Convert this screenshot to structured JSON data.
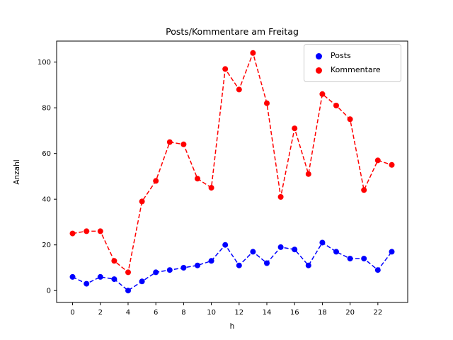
{
  "chart_data": {
    "type": "line",
    "title": "Posts/Kommentare am Freitag",
    "xlabel": "h",
    "ylabel": "Anzahl",
    "x": [
      0,
      1,
      2,
      3,
      4,
      5,
      6,
      7,
      8,
      9,
      10,
      11,
      12,
      13,
      14,
      15,
      16,
      17,
      18,
      19,
      20,
      21,
      22,
      23
    ],
    "series": [
      {
        "name": "Posts",
        "color": "#0000ff",
        "values": [
          6,
          3,
          6,
          5,
          0,
          4,
          8,
          9,
          10,
          11,
          13,
          20,
          11,
          17,
          12,
          19,
          18,
          11,
          21,
          17,
          14,
          14,
          9,
          17
        ]
      },
      {
        "name": "Kommentare",
        "color": "#ff0000",
        "values": [
          25,
          26,
          26,
          13,
          8,
          39,
          48,
          65,
          64,
          49,
          45,
          97,
          88,
          104,
          82,
          41,
          71,
          51,
          86,
          81,
          75,
          44,
          57,
          55
        ]
      }
    ],
    "xlim": [
      -1.15,
      24.15
    ],
    "ylim": [
      -5.2,
      109.2
    ],
    "xticks": [
      0,
      2,
      4,
      6,
      8,
      10,
      12,
      14,
      16,
      18,
      20,
      22
    ],
    "yticks": [
      0,
      20,
      40,
      60,
      80,
      100
    ],
    "grid": false,
    "line_style": "dashed",
    "marker": "o",
    "legend_position": "upper right"
  }
}
